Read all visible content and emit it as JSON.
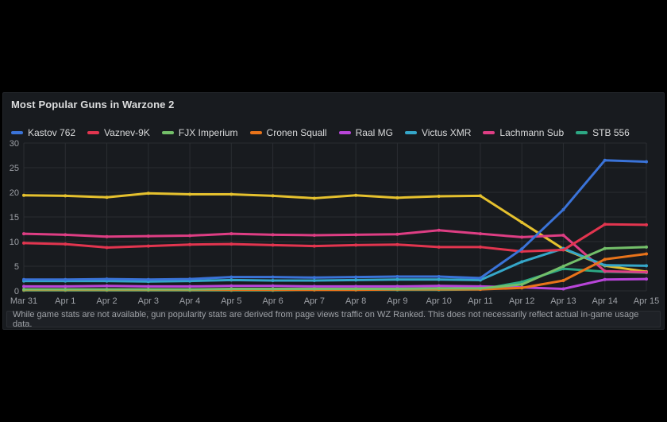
{
  "panel": {
    "title": "Most Popular Guns in Warzone 2",
    "footnote": "While game stats are not available, gun popularity stats are derived from page views traffic on WZ Ranked. This does not necessarily reflect actual in-game usage data."
  },
  "colors": {
    "page_background": "#000000",
    "panel_background": "#181B1F",
    "grid": "#2A2D32",
    "axis_text": "#9DA0A6",
    "title_text": "#DCDDDE",
    "legend_text": "#D8D9DA",
    "footnote_text": "#9FA2A7"
  },
  "chart_data": {
    "type": "line",
    "title": "Most Popular Guns in Warzone 2",
    "x_categories": [
      "Mar 31",
      "Apr 1",
      "Apr 2",
      "Apr 3",
      "Apr 4",
      "Apr 5",
      "Apr 6",
      "Apr 7",
      "Apr 8",
      "Apr 9",
      "Apr 10",
      "Apr 11",
      "Apr 12",
      "Apr 13",
      "Apr 14",
      "Apr 15"
    ],
    "ylim": [
      0,
      30
    ],
    "y_ticks": [
      0,
      5,
      10,
      15,
      20,
      25,
      30
    ],
    "grid": true,
    "legend_position": "top",
    "series": [
      {
        "name": "Kastov 762",
        "color": "#3A73D8",
        "values": [
          2.3,
          2.3,
          2.4,
          2.3,
          2.4,
          2.8,
          2.8,
          2.7,
          2.8,
          2.9,
          2.9,
          2.6,
          8.5,
          16.5,
          26.5,
          26.2
        ]
      },
      {
        "name": "Vaznev-9K",
        "color": "#E2354F",
        "values": [
          9.7,
          9.5,
          8.8,
          9.1,
          9.4,
          9.5,
          9.3,
          9.1,
          9.3,
          9.4,
          8.9,
          8.9,
          8.0,
          8.3,
          13.5,
          13.4
        ]
      },
      {
        "name": "FJX Imperium",
        "color": "#73BF69",
        "values": [
          0.3,
          0.3,
          0.3,
          0.3,
          0.3,
          0.4,
          0.4,
          0.4,
          0.4,
          0.4,
          0.5,
          0.5,
          1.3,
          5.0,
          8.6,
          8.9
        ]
      },
      {
        "name": "Cronen Squall",
        "color": "#E8731A",
        "values": [
          0.2,
          0.2,
          0.2,
          0.2,
          0.2,
          0.2,
          0.2,
          0.2,
          0.2,
          0.3,
          0.3,
          0.3,
          0.6,
          2.1,
          6.4,
          7.5
        ]
      },
      {
        "name": "Raal MG",
        "color": "#B845D9",
        "values": [
          0.9,
          0.9,
          1.0,
          0.9,
          0.9,
          1.0,
          1.0,
          0.9,
          0.9,
          0.9,
          1.0,
          0.9,
          0.7,
          0.4,
          2.3,
          2.4
        ]
      },
      {
        "name": "Victus XMR",
        "color": "#35A7C9",
        "values": [
          2.0,
          2.0,
          2.0,
          1.9,
          2.0,
          2.2,
          2.1,
          2.1,
          2.2,
          2.3,
          2.3,
          2.2,
          5.9,
          8.6,
          5.2,
          5.1
        ]
      },
      {
        "name": "Lachmann Sub",
        "color": "#DE3E84",
        "values": [
          11.6,
          11.4,
          11.0,
          11.1,
          11.2,
          11.6,
          11.4,
          11.3,
          11.4,
          11.5,
          12.3,
          11.6,
          10.9,
          11.3,
          4.0,
          3.8
        ]
      },
      {
        "name": "STB 556",
        "color": "#2DA884",
        "values": [
          0.1,
          0.1,
          0.1,
          0.1,
          0.1,
          0.1,
          0.1,
          0.2,
          0.2,
          0.2,
          0.2,
          0.3,
          1.8,
          4.5,
          3.9,
          3.7
        ]
      },
      {
        "name": "",
        "color": "#E5C12E",
        "values": [
          19.4,
          19.3,
          19.0,
          19.8,
          19.6,
          19.6,
          19.3,
          18.8,
          19.4,
          18.9,
          19.2,
          19.3,
          13.9,
          8.5,
          5.1,
          3.9
        ]
      }
    ]
  }
}
